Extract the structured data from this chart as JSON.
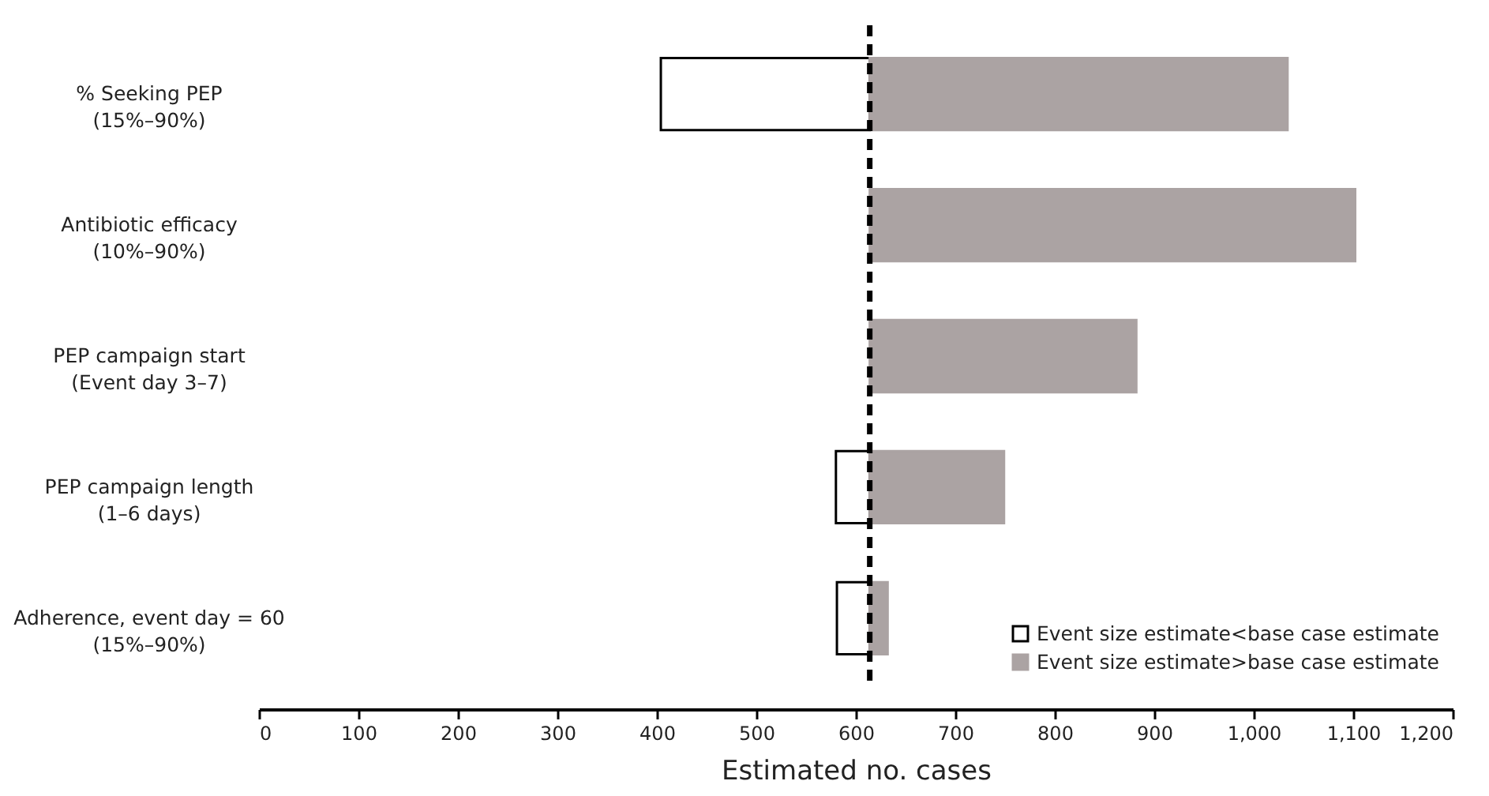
{
  "chart_data": {
    "type": "bar",
    "orientation": "horizontal",
    "xlabel": "Estimated no. cases",
    "categories": [
      "% Seeking PEP\n(15%–90%)",
      "Antibiotic efficacy\n(10%–90%)",
      "PEP campaign start\n(Event day 3–7)",
      "PEP campaign length\n(1–6 days)",
      "Adherence, event day = 60\n(15%–90%)"
    ],
    "series": [
      {
        "name": "Event size estimate<base case estimate",
        "color": "#ffffff",
        "base": [
          404,
          null,
          null,
          580,
          581
        ],
        "values": [
          210,
          null,
          null,
          34,
          33
        ]
      },
      {
        "name": "Event size estimate>base case estimate",
        "color": "#aba3a3",
        "base": [
          614,
          614,
          614,
          614,
          614
        ],
        "values": [
          420,
          488,
          268,
          135,
          18
        ]
      }
    ],
    "xlim": [
      0,
      1200
    ],
    "xticks": [
      0,
      100,
      200,
      300,
      400,
      500,
      600,
      700,
      800,
      900,
      {
        "value": 1000,
        "label": "1,000"
      },
      {
        "value": 1100,
        "label": "1,100"
      },
      {
        "value": 1200,
        "label": "1,200"
      }
    ],
    "ref_lines": [
      {
        "axis": "x",
        "value": 614,
        "line_style": "dashed",
        "color": "#000000"
      }
    ],
    "legend": "bottom right"
  }
}
